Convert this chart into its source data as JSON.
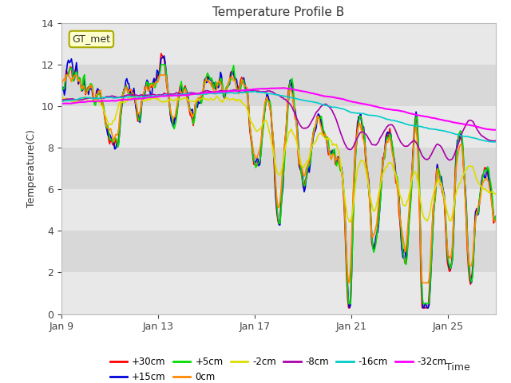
{
  "title": "Temperature Profile B",
  "xlabel": "Time",
  "ylabel": "Temperature(C)",
  "ylim": [
    0,
    14
  ],
  "yticks": [
    0,
    2,
    4,
    6,
    8,
    10,
    12,
    14
  ],
  "background_color": "#ffffff",
  "plot_bg_color": "#d8d8d8",
  "band_colors": [
    "#e8e8e8",
    "#d0d0d0"
  ],
  "title_fontsize": 11,
  "axis_fontsize": 9,
  "tick_fontsize": 9,
  "legend_label": "GT_met",
  "legend_bg": "#ffffcc",
  "legend_border": "#aaaa00",
  "series": [
    {
      "label": "+30cm",
      "color": "#ff0000",
      "lw": 1.2
    },
    {
      "label": "+15cm",
      "color": "#0000dd",
      "lw": 1.2
    },
    {
      "label": "+5cm",
      "color": "#00dd00",
      "lw": 1.2
    },
    {
      "label": "0cm",
      "color": "#ff8800",
      "lw": 1.2
    },
    {
      "label": "-2cm",
      "color": "#dddd00",
      "lw": 1.2
    },
    {
      "label": "-8cm",
      "color": "#aa00aa",
      "lw": 1.2
    },
    {
      "label": "-16cm",
      "color": "#00cccc",
      "lw": 1.2
    },
    {
      "label": "-32cm",
      "color": "#ff00ff",
      "lw": 1.5
    }
  ],
  "x_tick_labels": [
    "Jan 9",
    "Jan 13",
    "Jan 17",
    "Jan 21",
    "Jan 25"
  ],
  "x_tick_positions": [
    0,
    96,
    192,
    288,
    384
  ],
  "n_points": 432
}
